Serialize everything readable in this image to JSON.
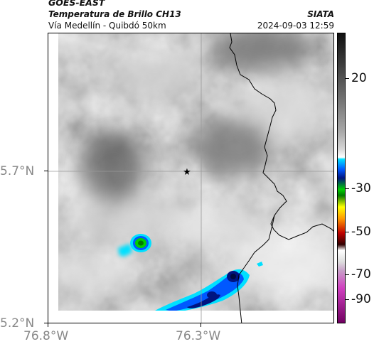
{
  "header": {
    "source": "GOES-EAST",
    "title": "Temperatura de Brillo CH13",
    "subtitle": "Vía Medellín - Quibdó 50km",
    "organization": "SIATA",
    "datetime": "2024-09-03 12:59"
  },
  "map": {
    "lat_labels": [
      "5.7°N",
      "5.2°N"
    ],
    "lon_labels": [
      "76.8°W",
      "76.3°W"
    ],
    "marker": "star-icon",
    "colors": {
      "cloud_cold": "#0058ff",
      "cloud_core": "#001480",
      "cyan": "#00e0ff",
      "green": "#00d000",
      "border": "#000000"
    }
  },
  "colorbar": {
    "labels": [
      "20",
      "-30",
      "-50",
      "-70",
      "-90"
    ]
  }
}
